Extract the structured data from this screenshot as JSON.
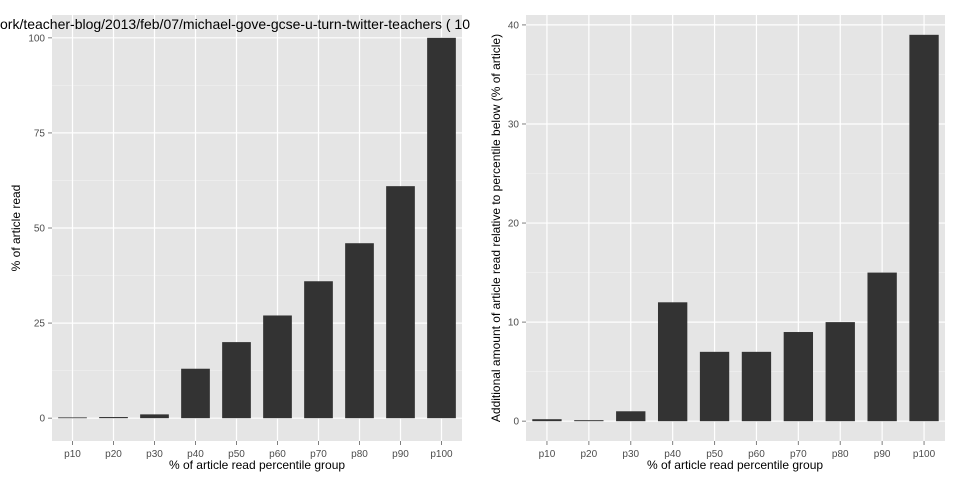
{
  "figure": {
    "colors": {
      "panel": "#e5e5e5",
      "grid": "#ffffff",
      "bar": "#333333",
      "tick_text": "#4d4d4d"
    }
  },
  "chart_data": [
    {
      "type": "bar",
      "title": "ork/teacher-blog/2013/feb/07/michael-gove-gcse-u-turn-twitter-teachers ( 10",
      "xlabel": "% of article read percentile group",
      "ylabel": "% of article read",
      "categories": [
        "p10",
        "p20",
        "p30",
        "p40",
        "p50",
        "p60",
        "p70",
        "p80",
        "p90",
        "p100"
      ],
      "values": [
        0.2,
        0.3,
        1,
        13,
        20,
        27,
        36,
        46,
        61,
        100
      ],
      "ylim": [
        -6,
        106
      ],
      "yticks": [
        0,
        25,
        50,
        75,
        100
      ],
      "grid": true
    },
    {
      "type": "bar",
      "title": "",
      "xlabel": "% of article read percentile group",
      "ylabel": "Additional amount of article read relative to percentile below (% of article)",
      "categories": [
        "p10",
        "p20",
        "p30",
        "p40",
        "p50",
        "p60",
        "p70",
        "p80",
        "p90",
        "p100"
      ],
      "values": [
        0.2,
        0.1,
        1,
        12,
        7,
        7,
        9,
        10,
        15,
        39
      ],
      "ylim": [
        -2,
        41
      ],
      "yticks": [
        0,
        10,
        20,
        30,
        40
      ],
      "grid": true
    }
  ]
}
